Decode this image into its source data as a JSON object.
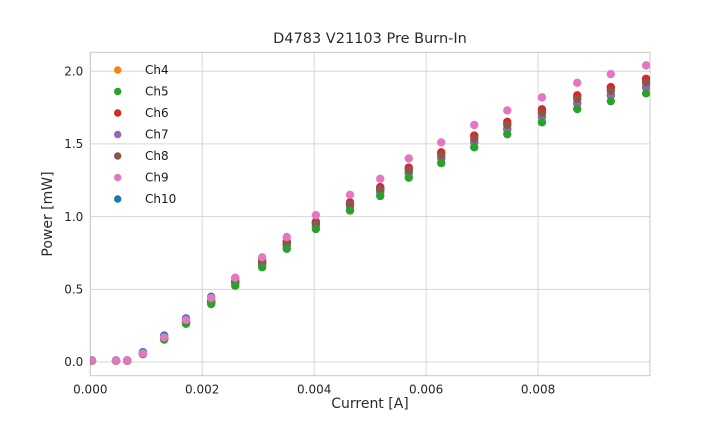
{
  "chart_data": {
    "type": "scatter",
    "title": "D4783 V21103 Pre Burn-In",
    "xlabel": "Current [A]",
    "ylabel": "Power [mW]",
    "xlim": [
      0.0,
      0.01
    ],
    "ylim": [
      -0.094,
      2.13
    ],
    "xticks": [
      0.0,
      0.002,
      0.004,
      0.006,
      0.008
    ],
    "xtick_labels": [
      "0.000",
      "0.002",
      "0.004",
      "0.006",
      "0.008"
    ],
    "yticks": [
      0.0,
      0.5,
      1.0,
      1.5,
      2.0
    ],
    "ytick_labels": [
      "0.0",
      "0.5",
      "1.0",
      "1.5",
      "2.0"
    ],
    "grid": true,
    "legend_position": "upper left",
    "x": [
      3e-05,
      0.00046,
      0.00066,
      0.00094,
      0.00132,
      0.00171,
      0.00216,
      0.00259,
      0.00307,
      0.00351,
      0.00403,
      0.00464,
      0.00518,
      0.00569,
      0.00627,
      0.00686,
      0.00745,
      0.00807,
      0.0087,
      0.0093,
      0.00993
    ],
    "series": [
      {
        "name": "Ch4",
        "color": "#ff7f0e",
        "values": [
          0.01,
          0.01,
          0.01,
          0.057,
          0.162,
          0.276,
          0.418,
          0.551,
          0.684,
          0.817,
          0.96,
          1.092,
          1.197,
          1.33,
          1.434,
          1.548,
          1.643,
          1.729,
          1.824,
          1.881,
          1.938
        ]
      },
      {
        "name": "Ch5",
        "color": "#2ca02c",
        "values": [
          0.009,
          0.009,
          0.009,
          0.054,
          0.154,
          0.263,
          0.399,
          0.525,
          0.652,
          0.779,
          0.915,
          1.042,
          1.142,
          1.268,
          1.368,
          1.477,
          1.567,
          1.649,
          1.74,
          1.794,
          1.848
        ]
      },
      {
        "name": "Ch6",
        "color": "#d62728",
        "values": [
          0.01,
          0.01,
          0.01,
          0.057,
          0.162,
          0.277,
          0.42,
          0.554,
          0.688,
          0.821,
          0.965,
          1.098,
          1.203,
          1.337,
          1.442,
          1.557,
          1.652,
          1.738,
          1.834,
          1.891,
          1.948
        ]
      },
      {
        "name": "Ch7",
        "color": "#9467bd",
        "values": [
          0.009,
          0.009,
          0.009,
          0.056,
          0.158,
          0.269,
          0.408,
          0.538,
          0.667,
          0.797,
          0.936,
          1.066,
          1.168,
          1.298,
          1.4,
          1.511,
          1.604,
          1.687,
          1.78,
          1.835,
          1.891
        ]
      },
      {
        "name": "Ch8",
        "color": "#8c564b",
        "values": [
          0.009,
          0.009,
          0.009,
          0.057,
          0.16,
          0.273,
          0.414,
          0.546,
          0.678,
          0.81,
          0.951,
          1.083,
          1.187,
          1.319,
          1.422,
          1.535,
          1.63,
          1.714,
          1.809,
          1.865,
          1.922
        ]
      },
      {
        "name": "Ch9",
        "color": "#e377c2",
        "values": [
          0.01,
          0.01,
          0.01,
          0.06,
          0.17,
          0.29,
          0.44,
          0.58,
          0.72,
          0.86,
          1.01,
          1.15,
          1.26,
          1.4,
          1.51,
          1.63,
          1.73,
          1.82,
          1.92,
          1.98,
          2.04
        ]
      },
      {
        "name": "Ch10",
        "color": "#1f77b4",
        "values": [
          0.012,
          0.012,
          0.012,
          0.068,
          0.182,
          0.3,
          0.448,
          0.578,
          0.705,
          0.83,
          0.96,
          1.08,
          1.18,
          1.3,
          1.4,
          1.51,
          1.6,
          1.685,
          1.778,
          1.833,
          1.889
        ]
      }
    ],
    "draw_order": [
      "Ch10",
      "Ch4",
      "Ch6",
      "Ch7",
      "Ch8",
      "Ch5",
      "Ch9"
    ]
  }
}
